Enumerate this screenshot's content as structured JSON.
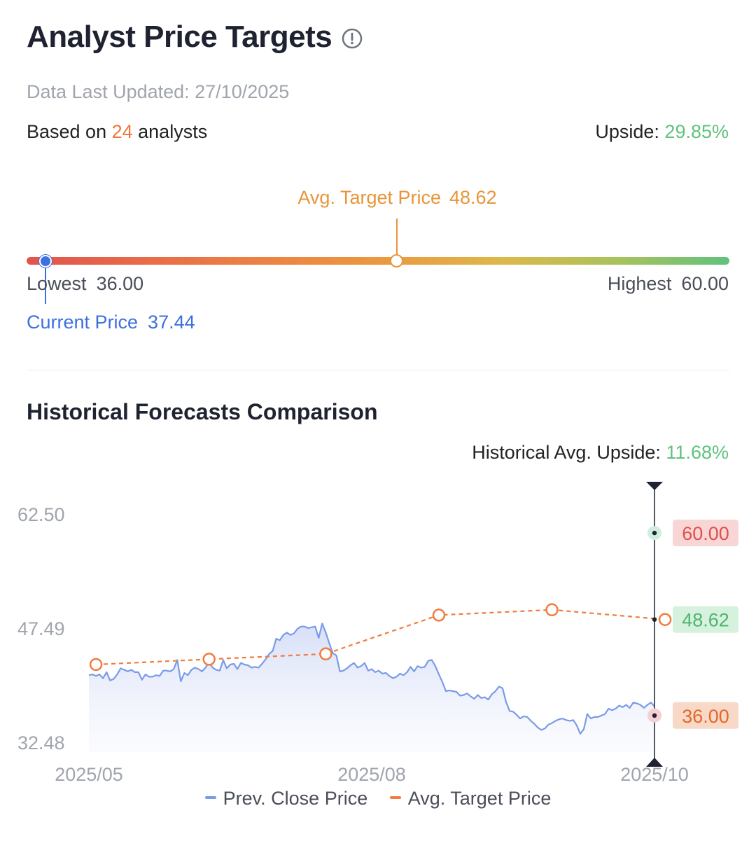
{
  "header": {
    "title": "Analyst Price Targets",
    "updated": "Data Last Updated: 27/10/2025",
    "based_prefix": "Based on ",
    "analysts_count": "24",
    "based_suffix": " analysts",
    "upside_label": "Upside: ",
    "upside_value": "29.85%"
  },
  "range": {
    "avg_label": "Avg. Target Price",
    "avg_value": "48.62",
    "lowest_label": "Lowest",
    "lowest_value": "36.00",
    "highest_label": "Highest",
    "highest_value": "60.00",
    "current_label": "Current Price",
    "current_value": "37.44",
    "low": 36.0,
    "high": 60.0,
    "avg": 48.62,
    "current": 37.44
  },
  "history": {
    "title": "Historical Forecasts Comparison",
    "upside_label": "Historical Avg. Upside: ",
    "upside_value": "11.68%"
  },
  "colors": {
    "price_line": "#7b9ae8",
    "target_line": "#ef7d3f",
    "high_tag_bg": "#f8d6d6",
    "high_tag_text": "#e0504a",
    "avg_tag_bg": "#d6f1de",
    "avg_tag_text": "#4fb56c",
    "low_tag_bg": "#f8d8c6",
    "low_tag_text": "#e06a2c"
  },
  "legend": {
    "price": "Prev. Close Price",
    "target": "Avg. Target Price"
  },
  "chart_data": {
    "type": "line",
    "ylim": [
      32.48,
      62.5
    ],
    "yticks": [
      "62.50",
      "47.49",
      "32.48"
    ],
    "xticks": [
      "2025/05",
      "2025/08",
      "2025/10"
    ],
    "series": [
      {
        "name": "Prev. Close Price",
        "values": [
          41.3,
          41.4,
          41.2,
          41.4,
          40.9,
          41.7,
          40.6,
          40.8,
          41.4,
          42.2,
          42.0,
          41.8,
          42.0,
          41.7,
          41.7,
          40.7,
          41.4,
          41.1,
          41.1,
          41.3,
          41.2,
          41.9,
          41.9,
          41.8,
          42.1,
          43.3,
          40.5,
          41.6,
          41.3,
          42.0,
          42.3,
          42.1,
          41.8,
          42.3,
          43.0,
          42.3,
          42.0,
          41.9,
          43.3,
          42.2,
          42.7,
          42.8,
          42.1,
          42.9,
          42.7,
          42.6,
          42.3,
          42.4,
          42.3,
          42.8,
          43.4,
          44.1,
          44.5,
          46.1,
          45.9,
          46.6,
          46.9,
          46.6,
          46.8,
          47.4,
          47.7,
          47.7,
          47.5,
          47.6,
          47.7,
          46.2,
          48.1,
          46.9,
          45.5,
          44.2,
          43.9,
          41.8,
          41.9,
          42.2,
          42.6,
          42.9,
          42.3,
          42.5,
          42.9,
          41.9,
          42.1,
          41.7,
          41.9,
          41.5,
          41.6,
          41.2,
          40.9,
          41.1,
          41.5,
          41.3,
          41.7,
          42.4,
          41.8,
          42.5,
          42.3,
          42.4,
          43.2,
          43.3,
          42.5,
          41.4,
          40.4,
          39.2,
          39.3,
          39.2,
          39.1,
          38.6,
          38.7,
          38.9,
          38.5,
          38.2,
          38.7,
          38.3,
          38.4,
          38.1,
          38.8,
          39.2,
          39.8,
          39.6,
          37.8,
          36.6,
          36.5,
          36.1,
          35.6,
          35.9,
          35.8,
          35.3,
          34.9,
          34.4,
          34.1,
          34.3,
          34.8,
          35.0,
          35.3,
          35.5,
          35.6,
          35.4,
          35.3,
          35.4,
          34.7,
          33.6,
          34.2,
          36.2,
          35.6,
          35.8,
          35.8,
          36.0,
          36.2,
          36.9,
          36.7,
          36.9,
          37.3,
          37.1,
          37.4,
          37.0,
          37.7,
          37.6,
          37.4,
          37.0,
          37.4,
          37.7,
          37.2
        ]
      },
      {
        "name": "Avg. Target Price",
        "x_index": [
          2,
          34,
          67,
          99,
          131,
          163
        ],
        "values": [
          42.7,
          43.4,
          44.1,
          49.2,
          49.9,
          48.62
        ]
      }
    ],
    "latest": {
      "high": "60.00",
      "avg": "48.62",
      "low": "36.00",
      "high_v": 60.0,
      "avg_v": 48.62,
      "low_v": 36.0
    }
  }
}
